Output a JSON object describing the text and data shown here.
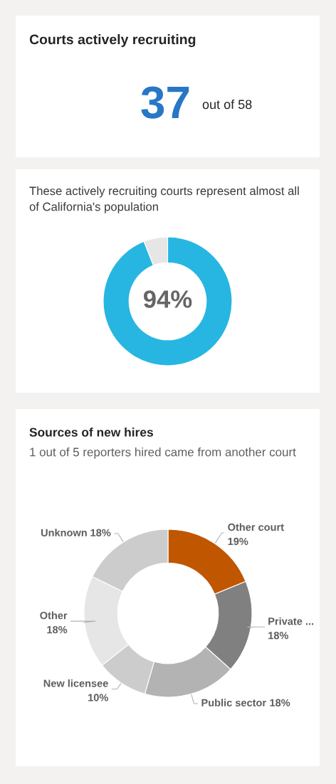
{
  "chart_data": [
    {
      "type": "other",
      "title": "Courts actively recruiting",
      "annotations": [
        "37",
        "out of 58"
      ]
    },
    {
      "type": "donut",
      "title": "These actively recruiting courts represent almost all of California's population",
      "categories": [
        null,
        null
      ],
      "values": [
        94,
        6
      ],
      "colors": [
        "#27b6e1",
        "#e6e6e6"
      ],
      "annotations": [
        "94%"
      ]
    },
    {
      "type": "donut",
      "title": "Sources of new hires",
      "subtitle": "1 out of 5 reporters hired came from another court",
      "categories": [
        "Other court",
        "Private ...",
        "Public sector",
        "New licensee",
        "Other",
        "Unknown"
      ],
      "values": [
        19,
        18,
        18,
        10,
        18,
        18
      ],
      "colors": [
        "#c05600",
        "#808080",
        "#b3b3b3",
        "#cccccc",
        "#e6e6e6",
        "#cccccc"
      ],
      "value_labels": [
        "19%",
        "18%",
        "18%",
        "10%",
        "18%",
        "18%"
      ]
    }
  ]
}
